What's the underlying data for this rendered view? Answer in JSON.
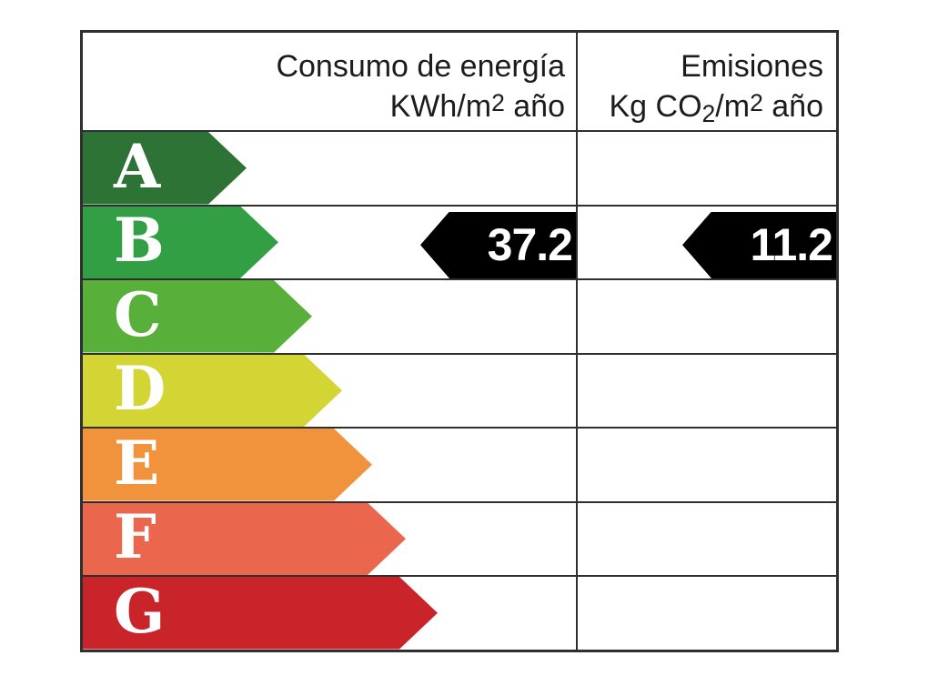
{
  "chart_data": {
    "type": "table",
    "title": "Etiqueta de eficiencia energética (energy efficiency rating label)",
    "columns": {
      "consumo": {
        "line1": "Consumo de energía",
        "unit_prefix": "KWh/m",
        "unit_sup": "2",
        "unit_suffix": " año"
      },
      "emisiones": {
        "line1": "Emisiones",
        "unit_prefix": "Kg CO",
        "unit_sub": "2",
        "unit_mid": "/m",
        "unit_sup": "2",
        "unit_suffix": " año"
      }
    },
    "ratings": [
      {
        "label": "A",
        "color": "#2c7335"
      },
      {
        "label": "B",
        "color": "#339f44"
      },
      {
        "label": "C",
        "color": "#58b03a"
      },
      {
        "label": "D",
        "color": "#d3d535"
      },
      {
        "label": "E",
        "color": "#f0933c"
      },
      {
        "label": "F",
        "color": "#ea664c"
      },
      {
        "label": "G",
        "color": "#c92429"
      }
    ],
    "current_rating": "B",
    "values": {
      "consumo": "37.2",
      "emisiones": "11.2"
    },
    "arrow_color": "#000000",
    "border_color": "#2f2f2f",
    "legend_position": "none",
    "grid": "on"
  }
}
